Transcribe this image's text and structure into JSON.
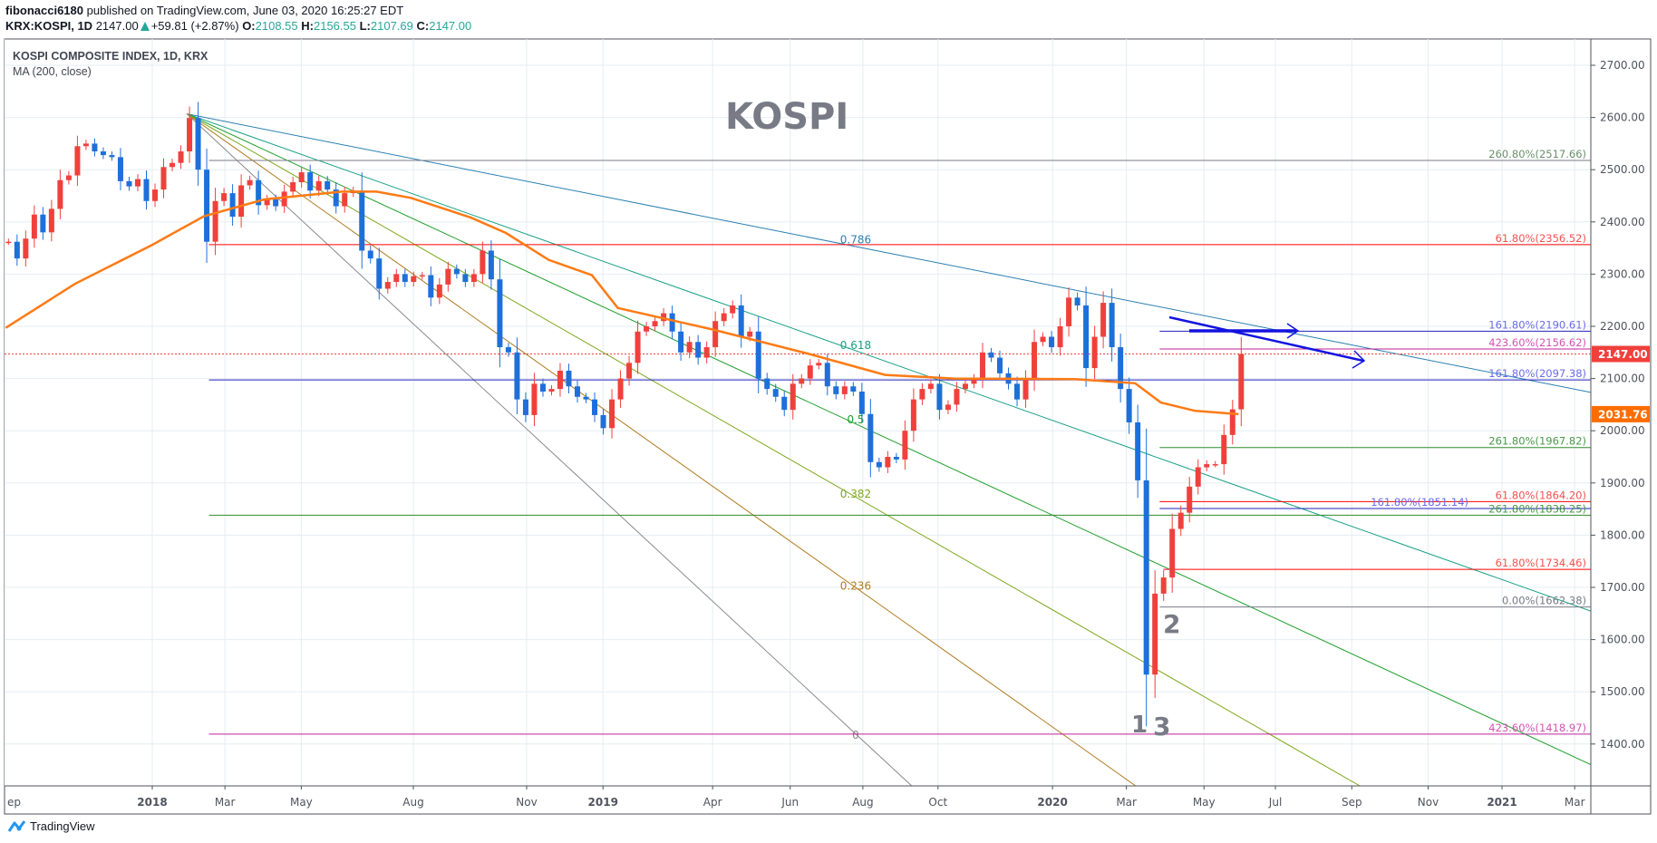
{
  "header": {
    "publisher": "fibonacci6180",
    "published_text": "published on TradingView.com, June 03, 2020 16:25:27 EDT",
    "symbol": "KRX:KOSPI, 1D",
    "last": "2147.00",
    "change": "+59.81 (+2.87%)",
    "o_label": "O:",
    "o": "2108.55",
    "h_label": "H:",
    "h": "2156.55",
    "l_label": "L:",
    "l": "2107.69",
    "c_label": "C:",
    "c": "2147.00"
  },
  "legend": {
    "title": "KOSPI COMPOSITE INDEX, 1D, KRX",
    "ma": "MA (200, close)"
  },
  "annotations": {
    "title": "KOSPI",
    "wave_2": "2",
    "wave_1": "1",
    "wave_3": "3"
  },
  "footer": {
    "brand": "TradingView"
  },
  "colors": {
    "up": "#f0403c",
    "down": "#1e6fd9",
    "ma": "#ff7a14",
    "grid": "#e6edf3",
    "axis_text": "#50535e",
    "last_price_badge": "#f0403c",
    "ma_badge": "#ff6d00",
    "arrow": "#1212e0"
  },
  "chart_data": {
    "type": "candlestick",
    "title": "KOSPI COMPOSITE INDEX, 1D, KRX",
    "ylim": [
      1320,
      2740
    ],
    "grid": true,
    "price_ticks": [
      "2700.00",
      "2600.00",
      "2500.00",
      "2400.00",
      "2300.00",
      "2200.00",
      "2100.00",
      "2000.00",
      "1900.00",
      "1800.00",
      "1700.00",
      "1600.00",
      "1500.00",
      "1400.00"
    ],
    "time_ticks": [
      {
        "label": "ep",
        "date": "2017-09-03",
        "bold": false
      },
      {
        "label": "2018",
        "date": "2018-01-01",
        "bold": true
      },
      {
        "label": "Mar",
        "date": "2018-03-01",
        "bold": false
      },
      {
        "label": "May",
        "date": "2018-05-02",
        "bold": false
      },
      {
        "label": "Aug",
        "date": "2018-08-01",
        "bold": false
      },
      {
        "label": "Nov",
        "date": "2018-11-01",
        "bold": false
      },
      {
        "label": "2019",
        "date": "2019-01-02",
        "bold": true
      },
      {
        "label": "Apr",
        "date": "2019-04-01",
        "bold": false
      },
      {
        "label": "Jun",
        "date": "2019-06-03",
        "bold": false
      },
      {
        "label": "Aug",
        "date": "2019-08-01",
        "bold": false
      },
      {
        "label": "Oct",
        "date": "2019-10-01",
        "bold": false
      },
      {
        "label": "2020",
        "date": "2020-01-02",
        "bold": true
      },
      {
        "label": "Mar",
        "date": "2020-03-02",
        "bold": false
      },
      {
        "label": "May",
        "date": "2020-05-04",
        "bold": false
      },
      {
        "label": "Jul",
        "date": "2020-07-01",
        "bold": false
      },
      {
        "label": "Sep",
        "date": "2020-09-01",
        "bold": false
      },
      {
        "label": "Nov",
        "date": "2020-11-02",
        "bold": false
      },
      {
        "label": "2021",
        "date": "2021-01-01",
        "bold": true
      },
      {
        "label": "Mar",
        "date": "2021-03-01",
        "bold": false
      }
    ],
    "first_week": "2017-09-04",
    "weekly_closes": [
      2362,
      2330,
      2368,
      2414,
      2380,
      2425,
      2480,
      2489,
      2545,
      2550,
      2535,
      2528,
      2524,
      2478,
      2468,
      2482,
      2440,
      2462,
      2505,
      2513,
      2535,
      2599,
      2500,
      2362,
      2440,
      2455,
      2410,
      2470,
      2480,
      2432,
      2443,
      2430,
      2458,
      2476,
      2495,
      2460,
      2478,
      2462,
      2430,
      2455,
      2460,
      2345,
      2330,
      2272,
      2285,
      2300,
      2285,
      2296,
      2298,
      2255,
      2280,
      2310,
      2300,
      2285,
      2300,
      2345,
      2290,
      2160,
      2150,
      2060,
      2030,
      2090,
      2075,
      2080,
      2115,
      2085,
      2065,
      2060,
      2030,
      2005,
      2060,
      2100,
      2130,
      2190,
      2200,
      2210,
      2225,
      2190,
      2150,
      2170,
      2140,
      2160,
      2210,
      2225,
      2240,
      2180,
      2190,
      2100,
      2080,
      2065,
      2040,
      2090,
      2100,
      2125,
      2130,
      2085,
      2070,
      2085,
      2075,
      2032,
      1940,
      1930,
      1950,
      1945,
      2000,
      2060,
      2080,
      2090,
      2040,
      2050,
      2080,
      2090,
      2100,
      2150,
      2140,
      2110,
      2090,
      2060,
      2100,
      2170,
      2180,
      2160,
      2200,
      2255,
      2240,
      2120,
      2180,
      2245,
      2160,
      2080,
      2016,
      1905,
      1533,
      1688,
      1719,
      1812,
      1843,
      1893,
      1930,
      1936,
      1936,
      1992,
      2041,
      2147
    ],
    "ma200": [
      [
        "2017-09-04",
        2197
      ],
      [
        "2017-10-30",
        2281
      ],
      [
        "2018-01-01",
        2356
      ],
      [
        "2018-02-12",
        2411
      ],
      [
        "2018-04-02",
        2443
      ],
      [
        "2018-06-04",
        2458
      ],
      [
        "2018-07-02",
        2458
      ],
      [
        "2018-07-30",
        2446
      ],
      [
        "2018-09-17",
        2408
      ],
      [
        "2018-10-15",
        2379
      ],
      [
        "2018-11-19",
        2327
      ],
      [
        "2018-12-24",
        2298
      ],
      [
        "2019-01-14",
        2235
      ],
      [
        "2019-04-01",
        2194
      ],
      [
        "2019-06-17",
        2148
      ],
      [
        "2019-08-19",
        2107
      ],
      [
        "2019-10-14",
        2100
      ],
      [
        "2020-01-20",
        2099
      ],
      [
        "2020-03-09",
        2091
      ],
      [
        "2020-03-30",
        2054
      ],
      [
        "2020-04-27",
        2038
      ],
      [
        "2020-06-01",
        2031.76
      ]
    ],
    "last_price": {
      "value": 2147.0,
      "label": "2147.00"
    },
    "ma_last": {
      "value": 2031.76,
      "label": "2031.76"
    },
    "fib_fan": {
      "origin": {
        "date": "2018-01-29",
        "price": 2607
      },
      "end": {
        "date": "2019-08-04",
        "price": 1400
      },
      "levels": [
        {
          "level": 0.786,
          "label": "0.786",
          "color": "#2a7fb0"
        },
        {
          "level": 0.618,
          "label": "0.618",
          "color": "#17a085"
        },
        {
          "level": 0.5,
          "label": "0.5",
          "color": "#1e9e2a"
        },
        {
          "level": 0.382,
          "label": "0.382",
          "color": "#7ea81c"
        },
        {
          "level": 0.236,
          "label": "0.236",
          "color": "#b07a1e"
        },
        {
          "level": 0,
          "label": "0",
          "color": "#8a8a8a"
        }
      ]
    },
    "fib_levels": [
      {
        "price": 2517.66,
        "label": "260.80%(2517.66)",
        "color": "#6b8f6b",
        "line": "#787b86",
        "from": "2018-02-16"
      },
      {
        "price": 2356.52,
        "label": "61.80%(2356.52)",
        "color": "#f05350",
        "line": "#ff0000",
        "from": "2018-02-16"
      },
      {
        "price": 2190.61,
        "label": "161.80%(2190.61)",
        "color": "#6b6bea",
        "line": "#2222bb",
        "from": "2020-03-29"
      },
      {
        "price": 2156.62,
        "label": "423.60%(2156.62)",
        "color": "#d552b4",
        "line": "#c0209a",
        "from": "2020-03-29"
      },
      {
        "price": 2097.38,
        "label": "161.80%(2097.38)",
        "color": "#6b6bea",
        "line": "#2222bb",
        "from": "2018-02-16"
      },
      {
        "price": 1967.82,
        "label": "261.80%(1967.82)",
        "color": "#4a9a4a",
        "line": "#2e8b2e",
        "from": "2020-03-29"
      },
      {
        "price": 1864.2,
        "label": "61.80%(1864.20)",
        "color": "#f05350",
        "line": "#ff0000",
        "from": "2020-03-29"
      },
      {
        "price": 1851.14,
        "label": "161.80%(1851.14)",
        "color": "#6b6bea",
        "line": "#2222bb",
        "from": "2020-03-29"
      },
      {
        "price": 1838.25,
        "label": "261.80%(1838.25)",
        "color": "#4a9a4a",
        "line": "#2e8b2e",
        "from": "2018-02-16"
      },
      {
        "price": 1734.46,
        "label": "61.80%(1734.46)",
        "color": "#f05350",
        "line": "#ff0000",
        "from": "2020-04-01"
      },
      {
        "price": 1662.38,
        "label": "0.00%(1662.38)",
        "color": "#787b86",
        "line": "#787b86",
        "from": "2020-03-29"
      },
      {
        "price": 1418.97,
        "label": "423.60%(1418.97)",
        "color": "#d552b4",
        "line": "#c0209a",
        "from": "2018-02-16"
      }
    ]
  }
}
